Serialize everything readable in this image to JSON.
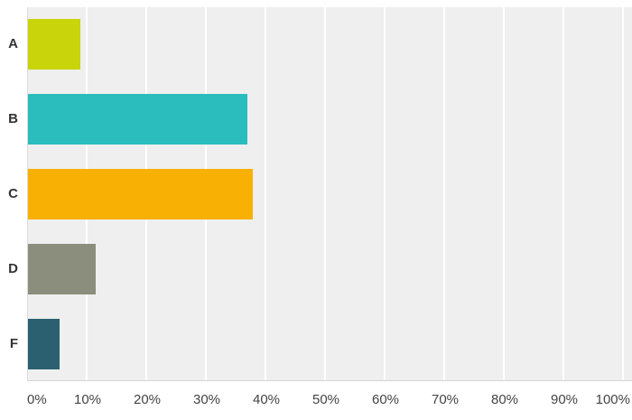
{
  "chart_data": {
    "type": "bar",
    "orientation": "horizontal",
    "title": "",
    "xlabel": "",
    "ylabel": "",
    "categories": [
      "A",
      "B",
      "C",
      "D",
      "F"
    ],
    "values": [
      8.8,
      36.8,
      37.7,
      11.4,
      5.3
    ],
    "bar_colors": [
      "#c9d40a",
      "#2bbcbe",
      "#f9b004",
      "#8b8e7c",
      "#2b6070"
    ],
    "xlim": [
      0,
      100
    ],
    "x_tick_labels": [
      "0%",
      "10%",
      "20%",
      "30%",
      "40%",
      "50%",
      "60%",
      "70%",
      "80%",
      "90%",
      "100%"
    ],
    "grid": true,
    "legend_position": "none"
  },
  "style": {
    "plot_background": "#efefef",
    "gridline_color": "#ffffff",
    "axis_line_color": "#d8d8d8",
    "category_label_color": "#333333",
    "tick_label_color": "#444444"
  }
}
